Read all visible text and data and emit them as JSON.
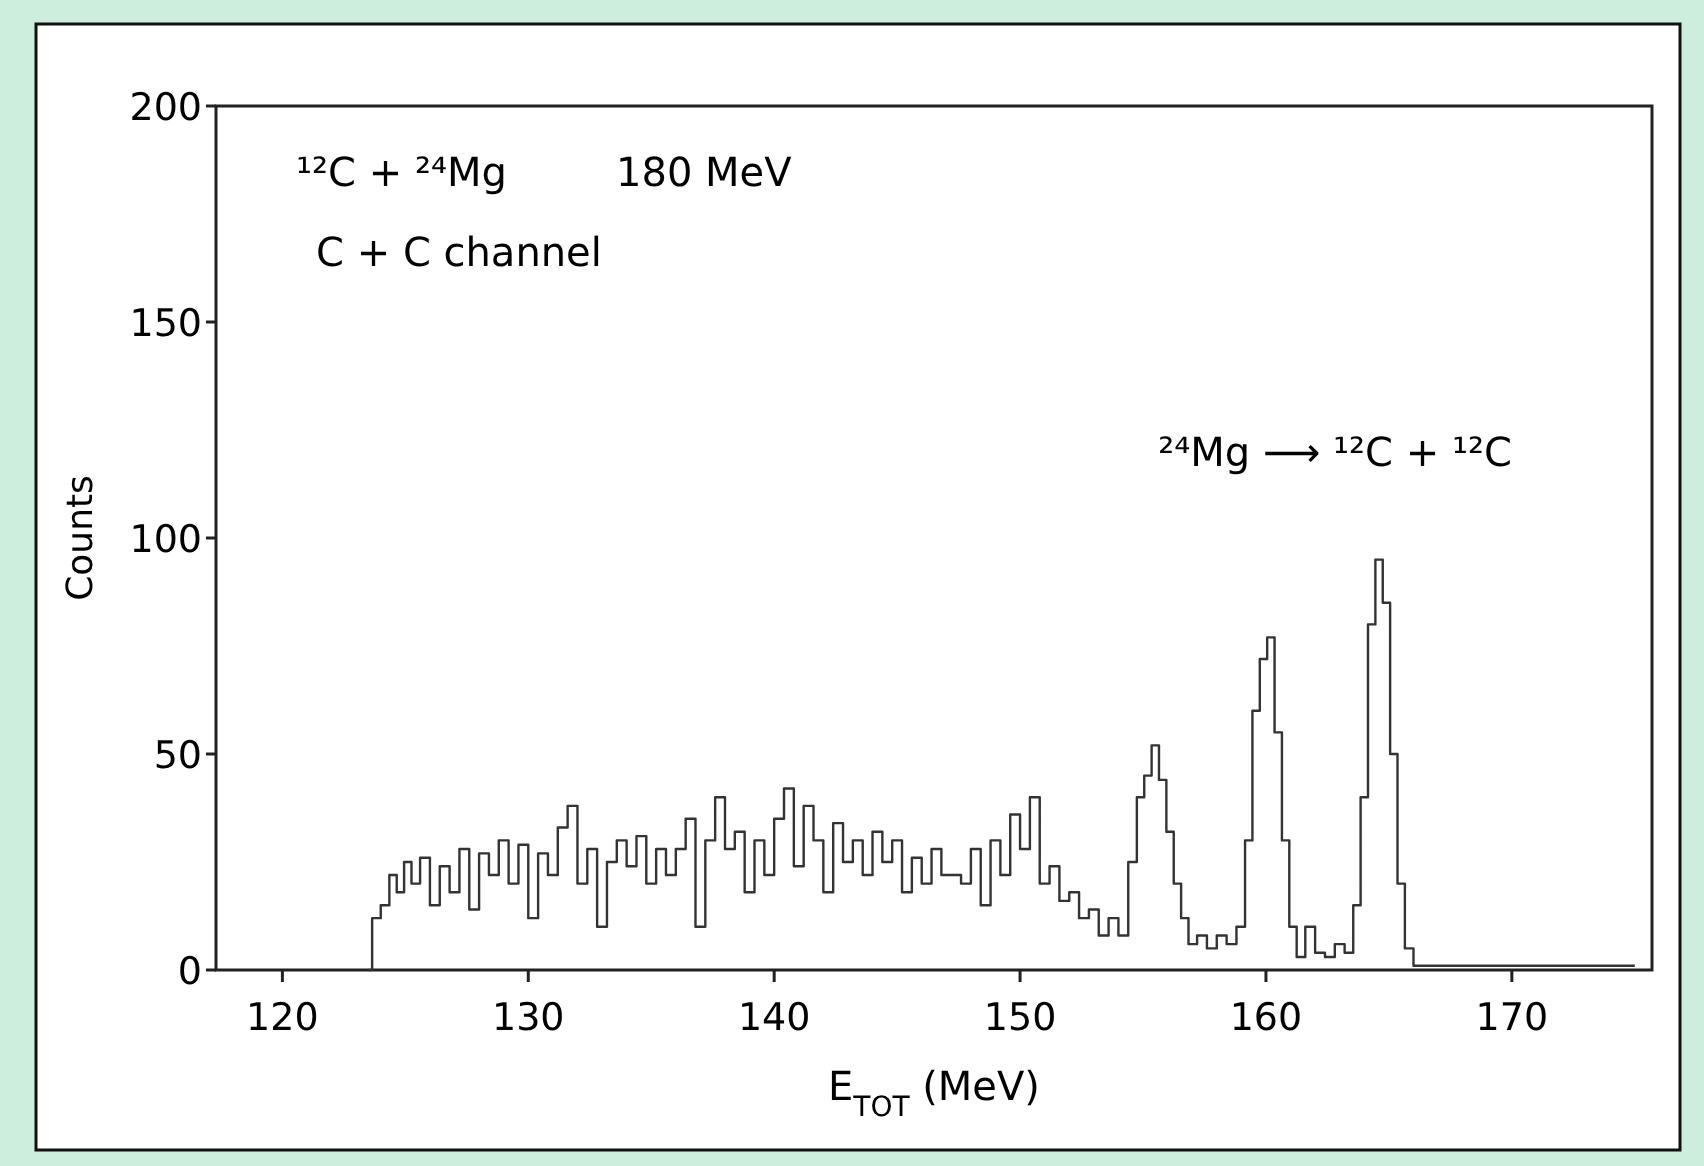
{
  "chart_data": {
    "type": "step",
    "xlabel": "E$_{TOT}$ (MeV)",
    "ylabel": "Counts",
    "annotations": [
      "¹²C + ²⁴Mg",
      "180 MeV",
      "C + C channel",
      "²⁴Mg ⟶ ¹²C + ¹²C"
    ],
    "xlim": [
      117.3,
      175.7
    ],
    "xticks": [
      120,
      130,
      140,
      150,
      160,
      170
    ],
    "ylim": [
      0,
      200
    ],
    "yticks": [
      0,
      50,
      100,
      150,
      200
    ],
    "grid": false,
    "marker": "none",
    "line_style": "solid",
    "x": [
      123.5,
      123.8,
      124.2,
      124.5,
      124.8,
      125.1,
      125.4,
      125.8,
      126.2,
      126.6,
      127,
      127.4,
      127.8,
      128.2,
      128.6,
      129,
      129.4,
      129.8,
      130.2,
      130.6,
      131,
      131.4,
      131.8,
      132.2,
      132.6,
      133,
      133.4,
      133.8,
      134.2,
      134.6,
      135,
      135.4,
      135.8,
      136.2,
      136.6,
      137,
      137.4,
      137.8,
      138.2,
      138.6,
      139,
      139.4,
      139.8,
      140.2,
      140.6,
      141,
      141.4,
      141.8,
      142.2,
      142.6,
      143,
      143.4,
      143.8,
      144.2,
      144.6,
      145,
      145.4,
      145.8,
      146.2,
      146.6,
      147,
      147.4,
      147.8,
      148.2,
      148.6,
      149,
      149.4,
      149.8,
      150.2,
      150.6,
      151,
      151.4,
      151.8,
      152.2,
      152.6,
      153,
      153.4,
      153.8,
      154.2,
      154.6,
      154.9,
      155.2,
      155.5,
      155.8,
      156.1,
      156.4,
      156.7,
      157,
      157.4,
      157.8,
      158.2,
      158.6,
      159,
      159.3,
      159.6,
      159.9,
      160.2,
      160.5,
      160.8,
      161.1,
      161.4,
      161.8,
      162.2,
      162.6,
      163,
      163.4,
      163.7,
      164,
      164.3,
      164.6,
      164.9,
      165.2,
      165.5,
      165.8,
      166.2,
      167,
      168,
      170,
      175
    ],
    "series": [
      {
        "color": "#333333",
        "values": [
          0,
          12,
          15,
          22,
          18,
          25,
          20,
          26,
          15,
          24,
          18,
          28,
          14,
          27,
          22,
          30,
          20,
          29,
          12,
          27,
          22,
          33,
          38,
          20,
          28,
          10,
          25,
          30,
          24,
          31,
          20,
          28,
          22,
          28,
          35,
          10,
          30,
          40,
          28,
          32,
          18,
          30,
          22,
          35,
          42,
          24,
          38,
          30,
          18,
          34,
          25,
          30,
          22,
          32,
          25,
          30,
          18,
          26,
          20,
          28,
          22,
          22,
          20,
          28,
          15,
          30,
          22,
          36,
          28,
          40,
          20,
          24,
          16,
          18,
          12,
          14,
          8,
          12,
          8,
          25,
          40,
          45,
          52,
          44,
          32,
          20,
          12,
          6,
          8,
          5,
          8,
          6,
          10,
          30,
          60,
          72,
          77,
          55,
          30,
          10,
          3,
          10,
          4,
          3,
          6,
          4,
          15,
          40,
          80,
          95,
          85,
          50,
          20,
          5,
          1,
          1,
          1,
          1,
          1
        ]
      }
    ]
  }
}
